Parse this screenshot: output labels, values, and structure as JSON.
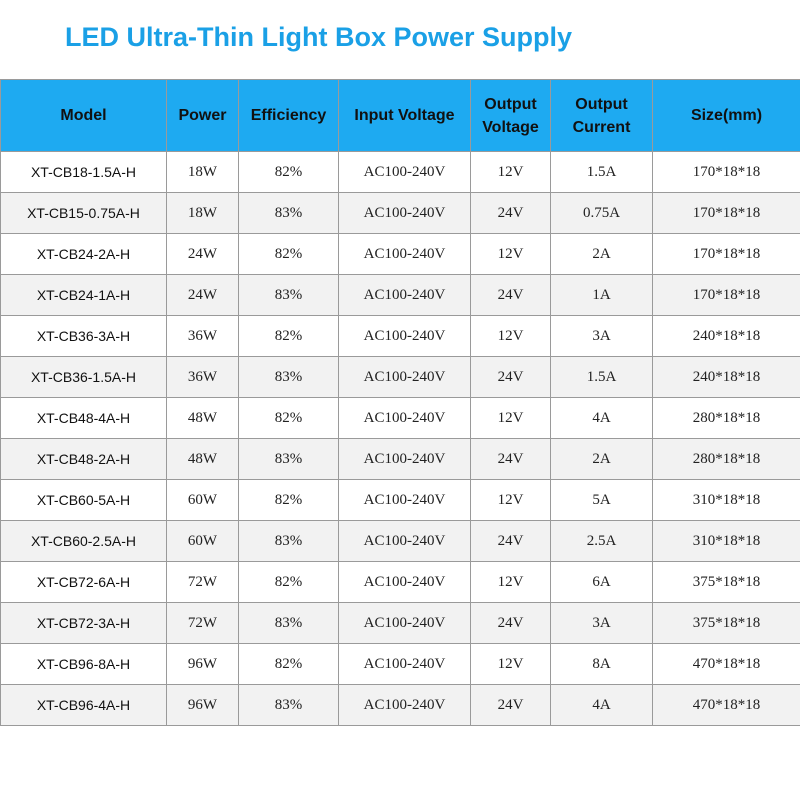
{
  "title": "LED Ultra-Thin Light Box Power Supply",
  "table": {
    "headers": {
      "model": "Model",
      "power": "Power",
      "efficiency": "Efficiency",
      "input_voltage": "Input Voltage",
      "output_voltage_line1": "Output",
      "output_voltage_line2": "Voltage",
      "output_current_line1": "Output",
      "output_current_line2": "Current",
      "size": "Size(mm)"
    },
    "rows": [
      {
        "model": "XT-CB18-1.5A-H",
        "power": "18W",
        "efficiency": "82%",
        "input": "AC100-240V",
        "out_v": "12V",
        "out_a": "1.5A",
        "size": "170*18*18"
      },
      {
        "model": "XT-CB15-0.75A-H",
        "power": "18W",
        "efficiency": "83%",
        "input": "AC100-240V",
        "out_v": "24V",
        "out_a": "0.75A",
        "size": "170*18*18"
      },
      {
        "model": "XT-CB24-2A-H",
        "power": "24W",
        "efficiency": "82%",
        "input": "AC100-240V",
        "out_v": "12V",
        "out_a": "2A",
        "size": "170*18*18"
      },
      {
        "model": "XT-CB24-1A-H",
        "power": "24W",
        "efficiency": "83%",
        "input": "AC100-240V",
        "out_v": "24V",
        "out_a": "1A",
        "size": "170*18*18"
      },
      {
        "model": "XT-CB36-3A-H",
        "power": "36W",
        "efficiency": "82%",
        "input": "AC100-240V",
        "out_v": "12V",
        "out_a": "3A",
        "size": "240*18*18"
      },
      {
        "model": "XT-CB36-1.5A-H",
        "power": "36W",
        "efficiency": "83%",
        "input": "AC100-240V",
        "out_v": "24V",
        "out_a": "1.5A",
        "size": "240*18*18"
      },
      {
        "model": "XT-CB48-4A-H",
        "power": "48W",
        "efficiency": "82%",
        "input": "AC100-240V",
        "out_v": "12V",
        "out_a": "4A",
        "size": "280*18*18"
      },
      {
        "model": "XT-CB48-2A-H",
        "power": "48W",
        "efficiency": "83%",
        "input": "AC100-240V",
        "out_v": "24V",
        "out_a": "2A",
        "size": "280*18*18"
      },
      {
        "model": "XT-CB60-5A-H",
        "power": "60W",
        "efficiency": "82%",
        "input": "AC100-240V",
        "out_v": "12V",
        "out_a": "5A",
        "size": "310*18*18"
      },
      {
        "model": "XT-CB60-2.5A-H",
        "power": "60W",
        "efficiency": "83%",
        "input": "AC100-240V",
        "out_v": "24V",
        "out_a": "2.5A",
        "size": "310*18*18"
      },
      {
        "model": "XT-CB72-6A-H",
        "power": "72W",
        "efficiency": "82%",
        "input": "AC100-240V",
        "out_v": "12V",
        "out_a": "6A",
        "size": "375*18*18"
      },
      {
        "model": "XT-CB72-3A-H",
        "power": "72W",
        "efficiency": "83%",
        "input": "AC100-240V",
        "out_v": "24V",
        "out_a": "3A",
        "size": "375*18*18"
      },
      {
        "model": "XT-CB96-8A-H",
        "power": "96W",
        "efficiency": "82%",
        "input": "AC100-240V",
        "out_v": "12V",
        "out_a": "8A",
        "size": "470*18*18"
      },
      {
        "model": "XT-CB96-4A-H",
        "power": "96W",
        "efficiency": "83%",
        "input": "AC100-240V",
        "out_v": "24V",
        "out_a": "4A",
        "size": "470*18*18"
      }
    ]
  }
}
